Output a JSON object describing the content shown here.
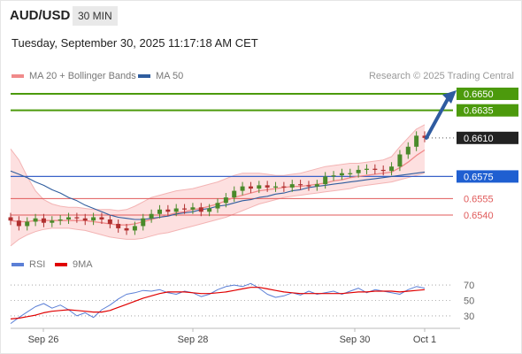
{
  "header": {
    "symbol": "AUD/USD",
    "interval": "30 MIN",
    "timestamp": "Tuesday, September 30, 2025 11:17:18 AM CET"
  },
  "legend": {
    "items": [
      {
        "label": "MA 20 + Bollinger Bands",
        "color": "#f08a8a"
      },
      {
        "label": "MA 50",
        "color": "#2f5d9e"
      }
    ],
    "research": "Research © 2025 Trading Central"
  },
  "rsi_legend": {
    "items": [
      {
        "label": "RSI",
        "color": "#5b7fd6"
      },
      {
        "label": "9MA",
        "color": "#e00000"
      }
    ]
  },
  "colors": {
    "target": "#4c9a0c",
    "pivot": "#222222",
    "support_line": "#3a62c8",
    "support_label": "#1f5fd1",
    "resistance": "#e05a5a",
    "candle_up": "#4a8a2a",
    "candle_down": "#b03030",
    "ma20": "#f08a8a",
    "ma50": "#2f5d9e",
    "band_fill": "#fde0e0",
    "arrow": "#2f5ba0",
    "rsi": "#5b7fd6",
    "rsi_ma": "#e00000"
  },
  "chart_data": [
    {
      "type": "candlestick",
      "xlabel": "",
      "ylabel": "",
      "x_ticks": [
        "Sep 26",
        "Sep 28",
        "Sep 30",
        "Oct 1"
      ],
      "ylim": [
        0.6515,
        0.6665
      ],
      "levels": [
        {
          "label": "0.6650",
          "value": 0.665,
          "kind": "target"
        },
        {
          "label": "0.6635",
          "value": 0.6635,
          "kind": "target"
        },
        {
          "label": "0.6610",
          "value": 0.661,
          "kind": "pivot"
        },
        {
          "label": "0.6575",
          "value": 0.6575,
          "kind": "support"
        },
        {
          "label": "0.6555",
          "value": 0.6555,
          "kind": "resistance"
        },
        {
          "label": "0.6540",
          "value": 0.654,
          "kind": "resistance"
        }
      ],
      "forecast": {
        "from": 0.661,
        "to": 0.665
      },
      "close_series": [
        0.6535,
        0.653,
        0.6534,
        0.6537,
        0.6533,
        0.6535,
        0.6536,
        0.6538,
        0.6537,
        0.6535,
        0.6538,
        0.6536,
        0.6532,
        0.6528,
        0.6526,
        0.653,
        0.6537,
        0.6541,
        0.6545,
        0.6543,
        0.6546,
        0.6545,
        0.6547,
        0.6543,
        0.6546,
        0.6551,
        0.6556,
        0.6562,
        0.6566,
        0.6564,
        0.6567,
        0.6565,
        0.6566,
        0.6565,
        0.6568,
        0.6567,
        0.6566,
        0.6568,
        0.6575,
        0.6576,
        0.6578,
        0.6578,
        0.6581,
        0.6582,
        0.6581,
        0.658,
        0.6584,
        0.6595,
        0.6602,
        0.6612,
        0.661
      ],
      "ma20": [
        0.6535,
        0.6534,
        0.6534,
        0.6535,
        0.6535,
        0.6535,
        0.6535,
        0.6535,
        0.6535,
        0.6535,
        0.6534,
        0.6533,
        0.6532,
        0.6531,
        0.6531,
        0.6532,
        0.6534,
        0.6536,
        0.6538,
        0.654,
        0.6542,
        0.6543,
        0.6545,
        0.6546,
        0.6548,
        0.655,
        0.6553,
        0.6556,
        0.6558,
        0.656,
        0.6562,
        0.6563,
        0.6564,
        0.6565,
        0.6566,
        0.6566,
        0.6567,
        0.6568,
        0.6569,
        0.6571,
        0.6572,
        0.6574,
        0.6575,
        0.6576,
        0.6577,
        0.6578,
        0.6579,
        0.6583,
        0.6588,
        0.6594,
        0.6599
      ],
      "ma50": [
        0.658,
        0.6577,
        0.6574,
        0.657,
        0.6567,
        0.6563,
        0.656,
        0.6556,
        0.6553,
        0.6549,
        0.6546,
        0.6543,
        0.654,
        0.6538,
        0.6537,
        0.6536,
        0.6536,
        0.6537,
        0.6538,
        0.6539,
        0.6541,
        0.6542,
        0.6543,
        0.6545,
        0.6546,
        0.6548,
        0.6549,
        0.6551,
        0.6553,
        0.6554,
        0.6556,
        0.6557,
        0.6559,
        0.656,
        0.6562,
        0.6563,
        0.6565,
        0.6566,
        0.6567,
        0.6568,
        0.6569,
        0.657,
        0.6571,
        0.6572,
        0.6573,
        0.6574,
        0.6575,
        0.6576,
        0.6577,
        0.6578,
        0.6579
      ],
      "bb_upper": [
        0.66,
        0.659,
        0.6575,
        0.6562,
        0.6554,
        0.655,
        0.6548,
        0.6547,
        0.6547,
        0.6546,
        0.6545,
        0.6545,
        0.6545,
        0.6544,
        0.6545,
        0.6548,
        0.6552,
        0.6556,
        0.6558,
        0.656,
        0.6562,
        0.6563,
        0.6564,
        0.6566,
        0.6568,
        0.657,
        0.6573,
        0.6576,
        0.6578,
        0.6578,
        0.6578,
        0.6577,
        0.6576,
        0.6576,
        0.6577,
        0.6578,
        0.658,
        0.6582,
        0.6584,
        0.6585,
        0.6586,
        0.6587,
        0.6587,
        0.6588,
        0.6589,
        0.659,
        0.6593,
        0.6602,
        0.661,
        0.6618,
        0.6622
      ],
      "bb_lower": [
        0.6512,
        0.6518,
        0.6522,
        0.6525,
        0.6527,
        0.6528,
        0.6528,
        0.6528,
        0.6527,
        0.6526,
        0.6524,
        0.6522,
        0.652,
        0.6519,
        0.6518,
        0.6518,
        0.6519,
        0.6521,
        0.6523,
        0.6524,
        0.6526,
        0.6528,
        0.653,
        0.6532,
        0.6534,
        0.6536,
        0.6538,
        0.6541,
        0.6544,
        0.6547,
        0.655,
        0.6552,
        0.6554,
        0.6556,
        0.6557,
        0.6558,
        0.6559,
        0.656,
        0.6561,
        0.6562,
        0.6563,
        0.6564,
        0.6566,
        0.6567,
        0.6568,
        0.6569,
        0.657,
        0.6572,
        0.6574,
        0.6576,
        0.6578
      ]
    },
    {
      "type": "line",
      "xlabel": "",
      "ylabel": "",
      "title": "",
      "ylim": [
        15,
        85
      ],
      "y_ticks": [
        70,
        50,
        30
      ],
      "series": [
        {
          "name": "RSI",
          "values": [
            20,
            28,
            35,
            42,
            46,
            40,
            44,
            38,
            30,
            34,
            28,
            38,
            44,
            52,
            58,
            60,
            63,
            62,
            64,
            60,
            58,
            62,
            60,
            55,
            58,
            64,
            68,
            70,
            68,
            72,
            66,
            58,
            54,
            56,
            60,
            57,
            62,
            58,
            60,
            62,
            58,
            62,
            66,
            60,
            64,
            62,
            60,
            58,
            64,
            68,
            66
          ]
        },
        {
          "name": "9MA",
          "values": [
            26,
            27,
            29,
            31,
            34,
            36,
            37,
            38,
            37,
            36,
            35,
            35,
            37,
            41,
            45,
            49,
            53,
            56,
            59,
            61,
            61,
            61,
            60,
            59,
            59,
            60,
            61,
            63,
            65,
            67,
            67,
            65,
            63,
            61,
            60,
            59,
            59,
            59,
            59,
            59,
            59,
            60,
            61,
            61,
            62,
            62,
            62,
            61,
            62,
            63,
            64
          ]
        }
      ]
    }
  ]
}
